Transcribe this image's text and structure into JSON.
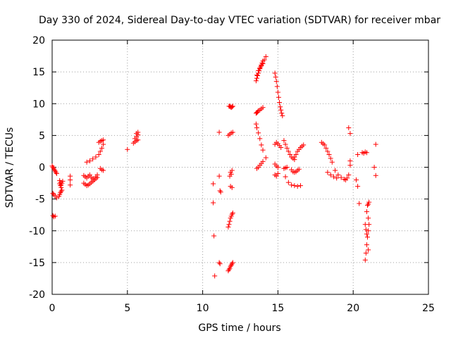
{
  "chart_data": {
    "type": "scatter",
    "title": "Day 330 of 2024, Sidereal Day-to-day VTEC variation (SDTVAR) for receiver mbar",
    "xlabel": "GPS time / hours",
    "ylabel": "SDTVAR / TECUs",
    "xlim": [
      0,
      25
    ],
    "ylim": [
      -20,
      20
    ],
    "x_ticks": [
      0,
      5,
      10,
      15,
      20,
      25
    ],
    "y_ticks": [
      -20,
      -15,
      -10,
      -5,
      0,
      5,
      10,
      15,
      20
    ],
    "x_tick_labels": [
      "0",
      "5",
      "10",
      "15",
      "20",
      "25"
    ],
    "y_tick_labels": [
      "-20",
      "-15",
      "-10",
      "-5",
      "0",
      "5",
      "10",
      "15",
      "20"
    ],
    "grid": true,
    "marker": "+",
    "color": "#ff0000",
    "series": [
      {
        "name": "SDTVAR",
        "x": [
          0.0,
          0.05,
          0.1,
          0.15,
          0.2,
          0.25,
          0.3,
          0.05,
          0.1,
          0.2,
          0.3,
          0.05,
          0.1,
          0.2,
          0.45,
          0.5,
          0.55,
          0.6,
          0.65,
          0.5,
          0.55,
          0.6,
          0.5,
          0.55,
          0.6,
          0.65,
          0.7,
          1.2,
          1.2,
          1.2,
          2.1,
          2.2,
          2.3,
          2.4,
          2.5,
          2.6,
          2.7,
          2.8,
          2.9,
          3.0,
          2.1,
          2.2,
          2.3,
          2.4,
          2.5,
          2.6,
          2.7,
          2.8,
          2.9,
          3.0,
          2.3,
          2.5,
          2.7,
          2.9,
          3.1,
          3.2,
          3.3,
          3.4,
          3.1,
          3.2,
          3.3,
          3.4,
          3.2,
          3.3,
          3.4,
          5.0,
          5.4,
          5.5,
          5.6,
          5.7,
          5.5,
          5.6,
          5.7,
          5.6,
          5.7,
          10.7,
          10.7,
          10.75,
          10.8,
          11.1,
          11.1,
          11.15,
          11.2,
          11.1,
          11.15,
          11.7,
          11.75,
          11.8,
          11.85,
          11.9,
          11.95,
          12.0,
          11.75,
          11.8,
          11.85,
          11.9,
          11.95,
          12.0,
          11.7,
          11.75,
          11.8,
          11.85,
          11.9,
          11.95,
          12.0,
          11.7,
          11.8,
          11.9,
          12.0,
          11.8,
          11.9,
          11.85,
          11.95,
          11.85,
          11.95,
          13.55,
          13.6,
          13.7,
          13.8,
          13.9,
          14.0,
          13.6,
          13.65,
          13.7,
          13.75,
          13.8,
          13.85,
          13.9,
          13.95,
          14.0,
          14.1,
          14.2,
          13.55,
          13.6,
          13.65,
          13.7,
          13.8,
          13.9,
          14.0,
          13.55,
          13.6,
          13.7,
          13.8,
          13.9,
          14.0,
          13.6,
          13.7,
          13.8,
          13.9,
          14.0,
          14.2,
          14.8,
          14.85,
          14.9,
          14.95,
          15.0,
          15.05,
          15.1,
          15.15,
          15.2,
          15.25,
          15.3,
          14.8,
          14.9,
          15.0,
          15.1,
          15.2,
          14.8,
          14.9,
          15.0,
          14.8,
          14.9,
          15.0,
          15.4,
          15.5,
          15.6,
          15.7,
          15.8,
          15.9,
          16.0,
          16.1,
          15.4,
          15.5,
          15.6,
          15.5,
          15.7,
          15.9,
          16.1,
          16.3,
          16.5,
          16.1,
          16.2,
          16.3,
          16.4,
          16.5,
          16.6,
          16.7,
          15.9,
          16.0,
          16.1,
          16.2,
          16.3,
          16.4,
          17.9,
          18.0,
          18.1,
          18.2,
          18.3,
          18.4,
          18.5,
          18.6,
          18.8,
          19.0,
          19.2,
          19.4,
          19.5,
          19.6,
          19.7,
          19.8,
          18.3,
          18.5,
          18.7,
          18.9,
          19.7,
          19.8,
          19.8,
          20.2,
          20.3,
          20.3,
          20.4,
          20.6,
          20.7,
          20.8,
          20.9,
          21.5,
          21.5,
          21.4,
          20.8,
          20.85,
          20.9,
          20.95,
          21.0,
          21.05,
          21.0,
          20.9,
          20.8,
          20.85,
          20.9,
          21.0,
          20.95,
          21.0,
          21.05
        ],
        "y": [
          0.2,
          0.0,
          -0.2,
          -0.4,
          -0.6,
          -0.8,
          -1.0,
          -4.1,
          -4.3,
          -4.5,
          -4.8,
          -7.6,
          -7.8,
          -7.7,
          -4.6,
          -4.3,
          -4.0,
          -3.8,
          -3.6,
          -2.1,
          -2.4,
          -2.8,
          -2.6,
          -2.9,
          -3.2,
          -2.5,
          -2.2,
          -1.4,
          -2.0,
          -2.8,
          -1.3,
          -1.5,
          -1.7,
          -1.4,
          -1.2,
          -1.6,
          -1.8,
          -2.0,
          -1.5,
          -1.2,
          -2.5,
          -2.7,
          -2.9,
          -2.8,
          -2.6,
          -2.4,
          -2.2,
          -2.0,
          -1.8,
          -1.6,
          0.8,
          1.0,
          1.3,
          1.6,
          2.0,
          2.5,
          3.0,
          3.6,
          3.9,
          4.1,
          4.2,
          4.3,
          -0.2,
          -0.4,
          -0.5,
          2.8,
          3.8,
          4.0,
          4.2,
          4.3,
          4.5,
          4.8,
          5.1,
          5.3,
          5.5,
          -2.6,
          -5.6,
          -10.8,
          -17.1,
          5.5,
          -1.4,
          -3.7,
          -3.9,
          -15.0,
          -15.2,
          -9.4,
          -9.0,
          -8.5,
          -8.0,
          -7.7,
          -7.4,
          -7.2,
          9.6,
          9.6,
          9.5,
          9.4,
          9.5,
          9.6,
          -16.3,
          -16.1,
          -15.9,
          -15.6,
          -15.4,
          -15.2,
          -15.0,
          5.0,
          5.2,
          5.4,
          5.5,
          -1.4,
          -1.1,
          -0.8,
          -0.5,
          -3.0,
          -3.2,
          13.6,
          14.5,
          15.2,
          15.6,
          16.0,
          16.3,
          14.0,
          14.4,
          14.8,
          15.2,
          15.5,
          15.8,
          16.1,
          16.4,
          16.7,
          16.9,
          17.4,
          8.5,
          8.6,
          8.7,
          8.9,
          9.0,
          9.2,
          9.4,
          6.8,
          6.2,
          5.4,
          4.5,
          3.5,
          2.7,
          -0.2,
          0.0,
          0.3,
          0.6,
          0.9,
          1.5,
          14.8,
          14.2,
          13.5,
          12.7,
          11.8,
          11.0,
          10.2,
          9.5,
          9.0,
          8.5,
          8.1,
          3.6,
          3.9,
          3.7,
          3.4,
          3.1,
          -1.2,
          -1.4,
          -1.0,
          0.5,
          0.2,
          0.0,
          4.2,
          3.6,
          3.0,
          2.5,
          2.0,
          1.6,
          1.4,
          1.2,
          -0.2,
          -0.1,
          0.0,
          -1.5,
          -2.4,
          -2.8,
          -2.9,
          -3.0,
          -2.9,
          1.6,
          2.0,
          2.5,
          2.8,
          3.1,
          3.3,
          3.5,
          -0.4,
          -0.7,
          -0.8,
          -0.7,
          -0.5,
          -0.3,
          3.9,
          3.7,
          3.5,
          3.0,
          2.5,
          2.0,
          1.4,
          0.8,
          -0.5,
          -1.2,
          -1.6,
          -1.9,
          -2.0,
          -1.7,
          -1.2,
          0.3,
          -0.8,
          -1.2,
          -1.5,
          -1.7,
          6.2,
          5.3,
          1.0,
          -2.0,
          2.0,
          -3.0,
          -5.7,
          2.3,
          2.2,
          2.4,
          2.3,
          3.6,
          -1.3,
          0.0,
          -14.6,
          -13.5,
          -12.2,
          -11.0,
          -10.0,
          -9.0,
          -8.0,
          -7.0,
          -9.0,
          -9.8,
          -10.5,
          -13.0,
          -6.0,
          -5.8,
          -5.5
        ]
      }
    ]
  }
}
